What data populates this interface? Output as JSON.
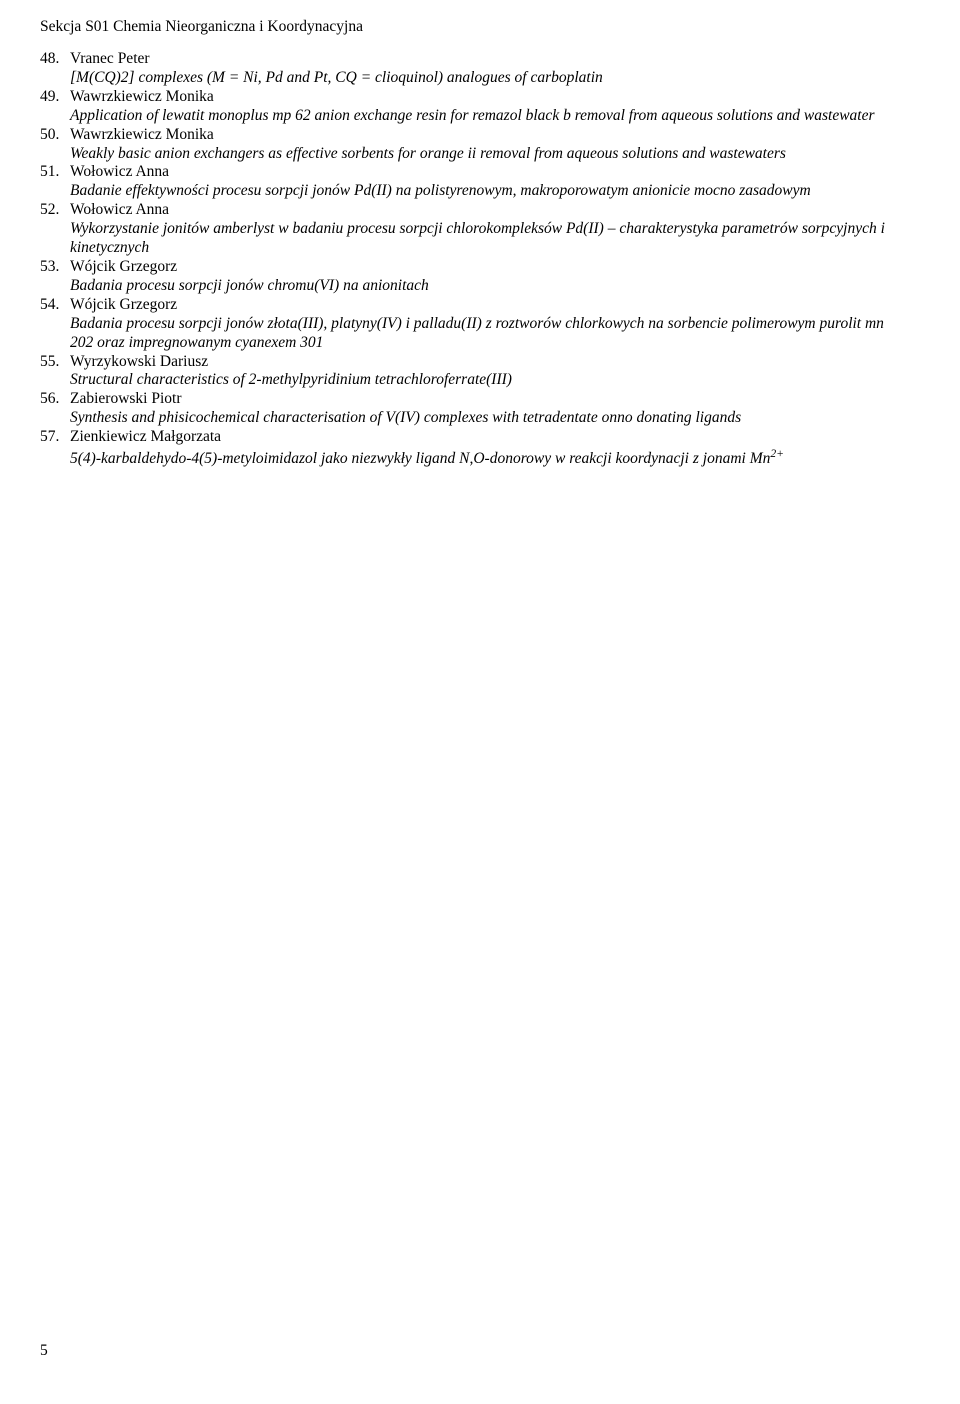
{
  "header": "Sekcja S01 Chemia Nieorganiczna i Koordynacyjna",
  "pageNumber": "5",
  "entries": [
    {
      "num": "48.",
      "author": "Vranec Peter",
      "desc": "[M(CQ)2] complexes (M = Ni, Pd and Pt, CQ = clioquinol) analogues of carboplatin"
    },
    {
      "num": "49.",
      "author": "Wawrzkiewicz Monika",
      "desc": "Application of lewatit monoplus mp 62 anion exchange resin for remazol black b removal from aqueous solutions and wastewater"
    },
    {
      "num": "50.",
      "author": "Wawrzkiewicz Monika",
      "desc": "Weakly basic anion exchangers as effective sorbents for orange ii removal from aqueous solutions and wastewaters"
    },
    {
      "num": "51.",
      "author": "Wołowicz Anna",
      "desc": "Badanie effektywności procesu sorpcji jonów Pd(II) na polistyrenowym, makroporowatym anionicie mocno zasadowym"
    },
    {
      "num": "52.",
      "author": "Wołowicz Anna",
      "desc": "Wykorzystanie jonitów amberlyst w badaniu procesu sorpcji chlorokompleksów Pd(II) – charakterystyka parametrów sorpcyjnych i kinetycznych"
    },
    {
      "num": "53.",
      "author": "Wójcik Grzegorz",
      "desc": "Badania procesu sorpcji jonów chromu(VI) na anionitach"
    },
    {
      "num": "54.",
      "author": "Wójcik Grzegorz",
      "desc": "Badania procesu sorpcji jonów złota(III), platyny(IV) i palladu(II) z roztworów chlorkowych na sorbencie polimerowym purolit mn 202 oraz impregnowanym cyanexem 301"
    },
    {
      "num": "55.",
      "author": "Wyrzykowski Dariusz",
      "desc": "Structural characteristics of 2-methylpyridinium tetrachloroferrate(III)"
    },
    {
      "num": "56.",
      "author": "Zabierowski Piotr",
      "desc": "Synthesis and phisicochemical characterisation of V(IV) complexes with tetradentate onno donating ligands"
    },
    {
      "num": "57.",
      "author": "Zienkiewicz Małgorzata",
      "desc": "5(4)-karbaldehydo-4(5)-metyloimidazol jako niezwykły ligand N,O-donorowy w reakcji koordynacji z jonami Mn",
      "sup": "2+"
    }
  ]
}
